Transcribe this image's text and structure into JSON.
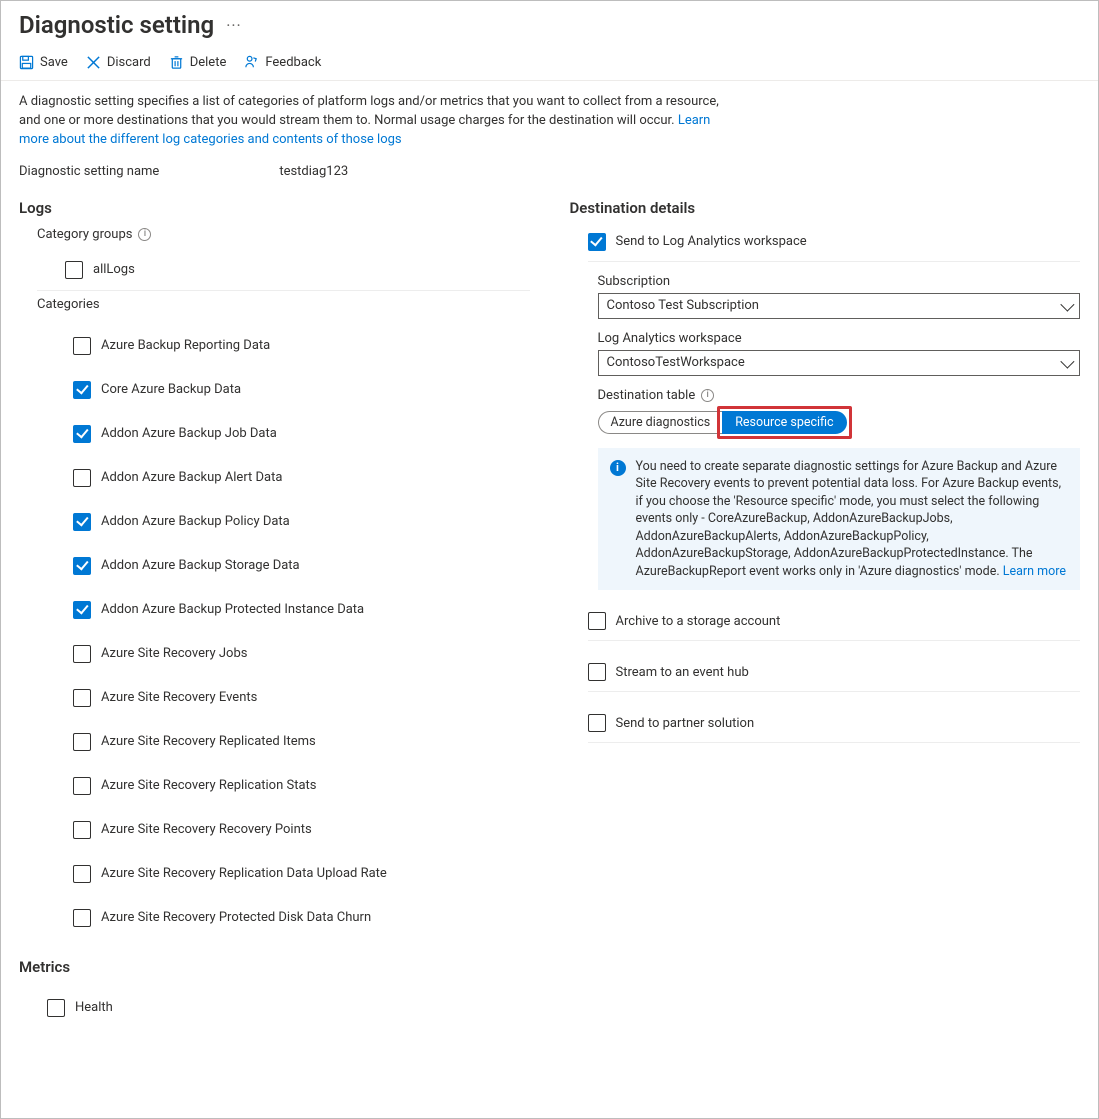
{
  "colors": {
    "accent": "#0078d4",
    "text": "#323130",
    "border": "#605e5c",
    "highlight_border": "#d13438",
    "callout_bg": "#eff6fc",
    "separator": "#edebe9"
  },
  "header": {
    "title": "Diagnostic setting"
  },
  "toolbar": {
    "save": "Save",
    "discard": "Discard",
    "delete": "Delete",
    "feedback": "Feedback"
  },
  "description": {
    "text": "A diagnostic setting specifies a list of categories of platform logs and/or metrics that you want to collect from a resource, and one or more destinations that you would stream them to. Normal usage charges for the destination will occur. ",
    "link": "Learn more about the different log categories and contents of those logs"
  },
  "setting_name": {
    "label": "Diagnostic setting name",
    "value": "testdiag123"
  },
  "logs": {
    "title": "Logs",
    "category_groups_label": "Category groups",
    "groups": [
      {
        "label": "allLogs",
        "checked": false
      }
    ],
    "categories_label": "Categories",
    "categories": [
      {
        "label": "Azure Backup Reporting Data",
        "checked": false
      },
      {
        "label": "Core Azure Backup Data",
        "checked": true
      },
      {
        "label": "Addon Azure Backup Job Data",
        "checked": true
      },
      {
        "label": "Addon Azure Backup Alert Data",
        "checked": false
      },
      {
        "label": "Addon Azure Backup Policy Data",
        "checked": true
      },
      {
        "label": "Addon Azure Backup Storage Data",
        "checked": true
      },
      {
        "label": "Addon Azure Backup Protected Instance Data",
        "checked": true
      },
      {
        "label": "Azure Site Recovery Jobs",
        "checked": false
      },
      {
        "label": "Azure Site Recovery Events",
        "checked": false
      },
      {
        "label": "Azure Site Recovery Replicated Items",
        "checked": false
      },
      {
        "label": "Azure Site Recovery Replication Stats",
        "checked": false
      },
      {
        "label": "Azure Site Recovery Recovery Points",
        "checked": false
      },
      {
        "label": "Azure Site Recovery Replication Data Upload Rate",
        "checked": false
      },
      {
        "label": "Azure Site Recovery Protected Disk Data Churn",
        "checked": false
      }
    ]
  },
  "metrics": {
    "title": "Metrics",
    "items": [
      {
        "label": "Health",
        "checked": false
      }
    ]
  },
  "destination": {
    "title": "Destination details",
    "log_analytics": {
      "label": "Send to Log Analytics workspace",
      "checked": true,
      "subscription_label": "Subscription",
      "subscription_value": "Contoso Test Subscription",
      "workspace_label": "Log Analytics workspace",
      "workspace_value": "ContosoTestWorkspace",
      "table_label": "Destination table",
      "table_options": [
        {
          "label": "Azure diagnostics",
          "selected": false
        },
        {
          "label": "Resource specific",
          "selected": true
        }
      ],
      "callout_text": "You need to create separate diagnostic settings for Azure Backup and Azure Site Recovery events to prevent potential data loss. For Azure Backup events, if you choose the 'Resource specific' mode, you must select the following events only - CoreAzureBackup, AddonAzureBackupJobs, AddonAzureBackupAlerts, AddonAzureBackupPolicy, AddonAzureBackupStorage, AddonAzureBackupProtectedInstance. The AzureBackupReport event works only in 'Azure diagnostics' mode.  ",
      "callout_link": "Learn more"
    },
    "archive": {
      "label": "Archive to a storage account",
      "checked": false
    },
    "eventhub": {
      "label": "Stream to an event hub",
      "checked": false
    },
    "partner": {
      "label": "Send to partner solution",
      "checked": false
    }
  }
}
